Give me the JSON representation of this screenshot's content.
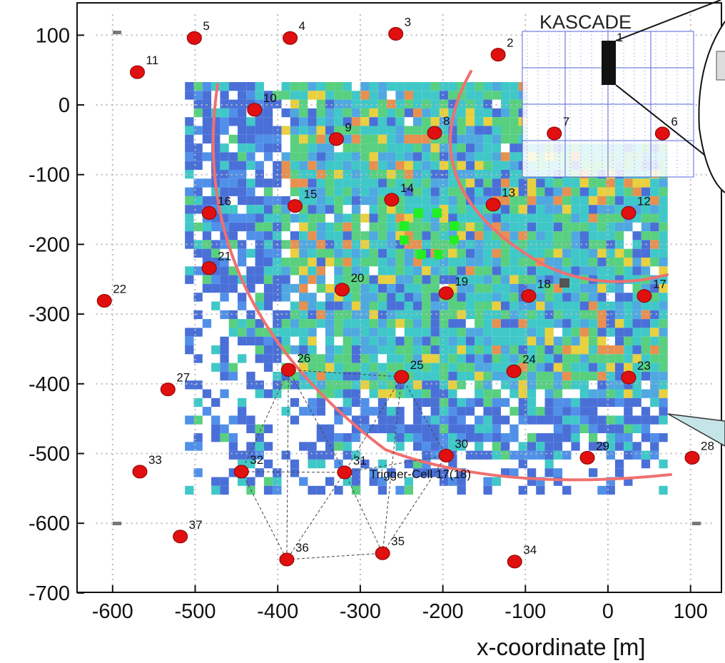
{
  "chart_data": {
    "type": "scatter",
    "xlabel": "x-coordinate [m]",
    "ylabel": "",
    "xlim": [
      -640,
      140
    ],
    "ylim": [
      -700,
      140
    ],
    "x_ticks": [
      -600,
      -500,
      -400,
      -300,
      -200,
      -100,
      0,
      100
    ],
    "y_ticks": [
      100,
      0,
      -100,
      -200,
      -300,
      -400,
      -500,
      -600,
      -700
    ],
    "detector_label": "KASCADE",
    "trigger_cell_label": "Trigger-Cell 17(18)",
    "colors": {
      "station": "#e01010",
      "station_edge": "#8b0000",
      "arc": "#f07070",
      "kascade_grid": "#5566dd",
      "density_low": "#4a70d8",
      "density_mid": "#40c8c8",
      "density_high": "#e89050",
      "trigger_bright": "#22ee22"
    },
    "stations": [
      {
        "id": "1",
        "x": 0,
        "y": 80
      },
      {
        "id": "2",
        "x": -133,
        "y": 72
      },
      {
        "id": "3",
        "x": -257,
        "y": 102
      },
      {
        "id": "4",
        "x": -385,
        "y": 96
      },
      {
        "id": "5",
        "x": -501,
        "y": 96
      },
      {
        "id": "6",
        "x": 66,
        "y": -41
      },
      {
        "id": "7",
        "x": -65,
        "y": -41
      },
      {
        "id": "8",
        "x": -210,
        "y": -40
      },
      {
        "id": "9",
        "x": -329,
        "y": -49
      },
      {
        "id": "10",
        "x": -428,
        "y": -7
      },
      {
        "id": "11",
        "x": -570,
        "y": 47
      },
      {
        "id": "12",
        "x": 25,
        "y": -155
      },
      {
        "id": "13",
        "x": -139,
        "y": -143
      },
      {
        "id": "14",
        "x": -262,
        "y": -136
      },
      {
        "id": "15",
        "x": -379,
        "y": -145
      },
      {
        "id": "16",
        "x": -483,
        "y": -155
      },
      {
        "id": "17",
        "x": 44,
        "y": -274
      },
      {
        "id": "18",
        "x": -96,
        "y": -274
      },
      {
        "id": "19",
        "x": -196,
        "y": -270
      },
      {
        "id": "20",
        "x": -322,
        "y": -265
      },
      {
        "id": "21",
        "x": -483,
        "y": -234
      },
      {
        "id": "22",
        "x": -610,
        "y": -281
      },
      {
        "id": "23",
        "x": 25,
        "y": -391
      },
      {
        "id": "24",
        "x": -114,
        "y": -382
      },
      {
        "id": "25",
        "x": -250,
        "y": -390
      },
      {
        "id": "26",
        "x": -387,
        "y": -380
      },
      {
        "id": "27",
        "x": -533,
        "y": -408
      },
      {
        "id": "28",
        "x": 102,
        "y": -506
      },
      {
        "id": "29",
        "x": -25,
        "y": -506
      },
      {
        "id": "30",
        "x": -196,
        "y": -503
      },
      {
        "id": "31",
        "x": -319,
        "y": -527
      },
      {
        "id": "32",
        "x": -444,
        "y": -526
      },
      {
        "id": "33",
        "x": -567,
        "y": -526
      },
      {
        "id": "34",
        "x": -113,
        "y": -655
      },
      {
        "id": "35",
        "x": -273,
        "y": -643
      },
      {
        "id": "36",
        "x": -389,
        "y": -652
      },
      {
        "id": "37",
        "x": -518,
        "y": -619
      }
    ]
  }
}
